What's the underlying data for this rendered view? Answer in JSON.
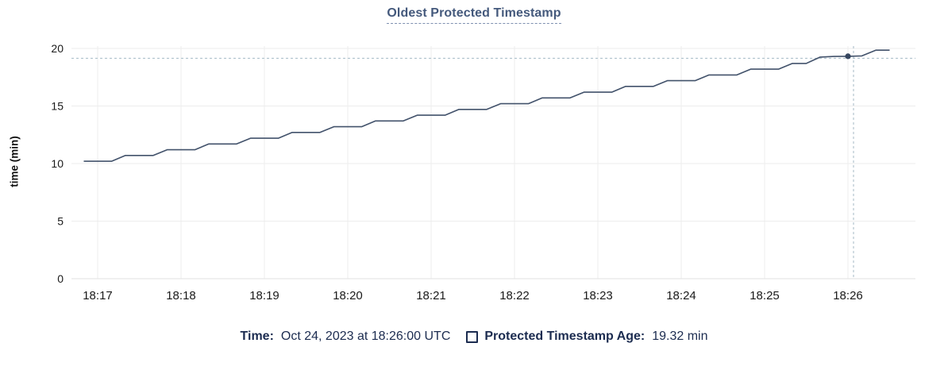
{
  "chart": {
    "title": "Oldest Protected Timestamp"
  },
  "legend": {
    "time_label": "Time:",
    "time_value": "Oct 24, 2023 at 18:26:00 UTC",
    "series_label": "Protected Timestamp Age:",
    "series_value": "19.32 min"
  },
  "chart_data": {
    "type": "line",
    "title": "Oldest Protected Timestamp",
    "xlabel": "",
    "ylabel": "time (min)",
    "ylim": [
      0,
      20
    ],
    "y_ticks": [
      0,
      5,
      10,
      15,
      20
    ],
    "x_ticks": [
      "18:17",
      "18:18",
      "18:19",
      "18:20",
      "18:21",
      "18:22",
      "18:23",
      "18:24",
      "18:25",
      "18:26"
    ],
    "grid": true,
    "legend_position": "bottom",
    "series": [
      {
        "name": "Protected Timestamp Age",
        "unit": "min",
        "points": [
          [
            "18:16:50",
            10.2
          ],
          [
            "18:17:00",
            10.2
          ],
          [
            "18:17:10",
            10.2
          ],
          [
            "18:17:20",
            10.7
          ],
          [
            "18:17:30",
            10.7
          ],
          [
            "18:17:40",
            10.7
          ],
          [
            "18:17:50",
            11.2
          ],
          [
            "18:18:00",
            11.2
          ],
          [
            "18:18:10",
            11.2
          ],
          [
            "18:18:20",
            11.7
          ],
          [
            "18:18:30",
            11.7
          ],
          [
            "18:18:40",
            11.7
          ],
          [
            "18:18:50",
            12.2
          ],
          [
            "18:19:00",
            12.2
          ],
          [
            "18:19:10",
            12.2
          ],
          [
            "18:19:20",
            12.7
          ],
          [
            "18:19:30",
            12.7
          ],
          [
            "18:19:40",
            12.7
          ],
          [
            "18:19:50",
            13.2
          ],
          [
            "18:20:00",
            13.2
          ],
          [
            "18:20:10",
            13.2
          ],
          [
            "18:20:20",
            13.7
          ],
          [
            "18:20:30",
            13.7
          ],
          [
            "18:20:40",
            13.7
          ],
          [
            "18:20:50",
            14.2
          ],
          [
            "18:21:00",
            14.2
          ],
          [
            "18:21:10",
            14.2
          ],
          [
            "18:21:20",
            14.7
          ],
          [
            "18:21:30",
            14.7
          ],
          [
            "18:21:40",
            14.7
          ],
          [
            "18:21:50",
            15.2
          ],
          [
            "18:22:00",
            15.2
          ],
          [
            "18:22:10",
            15.2
          ],
          [
            "18:22:20",
            15.7
          ],
          [
            "18:22:30",
            15.7
          ],
          [
            "18:22:40",
            15.7
          ],
          [
            "18:22:50",
            16.2
          ],
          [
            "18:23:00",
            16.2
          ],
          [
            "18:23:10",
            16.2
          ],
          [
            "18:23:20",
            16.7
          ],
          [
            "18:23:30",
            16.7
          ],
          [
            "18:23:40",
            16.7
          ],
          [
            "18:23:50",
            17.2
          ],
          [
            "18:24:00",
            17.2
          ],
          [
            "18:24:10",
            17.2
          ],
          [
            "18:24:20",
            17.7
          ],
          [
            "18:24:30",
            17.7
          ],
          [
            "18:24:40",
            17.7
          ],
          [
            "18:24:50",
            18.2
          ],
          [
            "18:25:00",
            18.2
          ],
          [
            "18:25:10",
            18.2
          ],
          [
            "18:25:20",
            18.7
          ],
          [
            "18:25:30",
            18.7
          ],
          [
            "18:25:40",
            19.25
          ],
          [
            "18:25:50",
            19.3
          ],
          [
            "18:26:00",
            19.32
          ],
          [
            "18:26:10",
            19.35
          ],
          [
            "18:26:20",
            19.85
          ],
          [
            "18:26:30",
            19.85
          ]
        ]
      }
    ],
    "highlight": {
      "time": "18:26:00",
      "value": 19.32
    },
    "crosshair": {
      "time": "18:26:04",
      "value": 19.15
    },
    "colors": {
      "line": "#42526b",
      "dot": "#36465f",
      "grid": "#ededed",
      "grid_zero": "#e2e2e2",
      "crosshair": "#a4bac6",
      "tick_text": "#1a1a1a",
      "title_text": "#44597c",
      "legend_text": "#1c2c50"
    }
  }
}
